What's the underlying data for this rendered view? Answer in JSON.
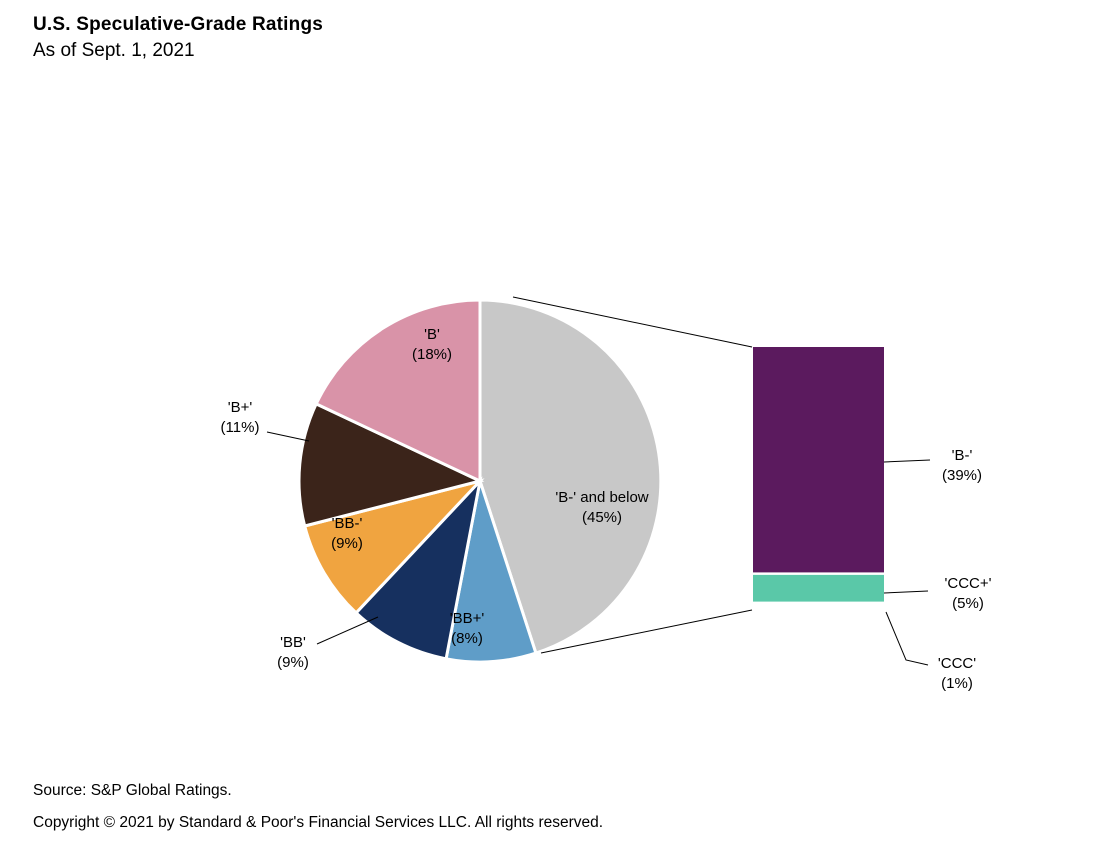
{
  "header": {
    "title": "U.S. Speculative-Grade Ratings",
    "subtitle": "As of Sept. 1, 2021"
  },
  "chart_data": {
    "type": "pie",
    "title": "U.S. Speculative-Grade Ratings",
    "as_of": "Sept. 1, 2021",
    "unit": "percent",
    "legend_position": "none",
    "slices": [
      {
        "label": "'B-' and below",
        "value": 45,
        "pct_text": "(45%)",
        "color": "#c8c8c8"
      },
      {
        "label": "'BB+'",
        "value": 8,
        "pct_text": "(8%)",
        "color": "#5f9dc8"
      },
      {
        "label": "'BB'",
        "value": 9,
        "pct_text": "(9%)",
        "color": "#16305f"
      },
      {
        "label": "'BB-'",
        "value": 9,
        "pct_text": "(9%)",
        "color": "#f0a440"
      },
      {
        "label": "'B+'",
        "value": 11,
        "pct_text": "(11%)",
        "color": "#3b241a"
      },
      {
        "label": "'B'",
        "value": 18,
        "pct_text": "(18%)",
        "color": "#d993a8"
      }
    ],
    "breakout_bar": {
      "parent_slice": "'B-' and below",
      "segments": [
        {
          "label": "'B-'",
          "value": 39,
          "pct_text": "(39%)",
          "color": "#5b1a5e"
        },
        {
          "label": "'CCC+'",
          "value": 5,
          "pct_text": "(5%)",
          "color": "#5ac8a8"
        },
        {
          "label": "'CCC'",
          "value": 1,
          "pct_text": "(1%)",
          "color": "#ffffff"
        }
      ]
    }
  },
  "footer": {
    "source": "Source: S&P Global Ratings.",
    "copyright": "Copyright © 2021 by Standard & Poor's Financial Services LLC. All rights reserved."
  }
}
